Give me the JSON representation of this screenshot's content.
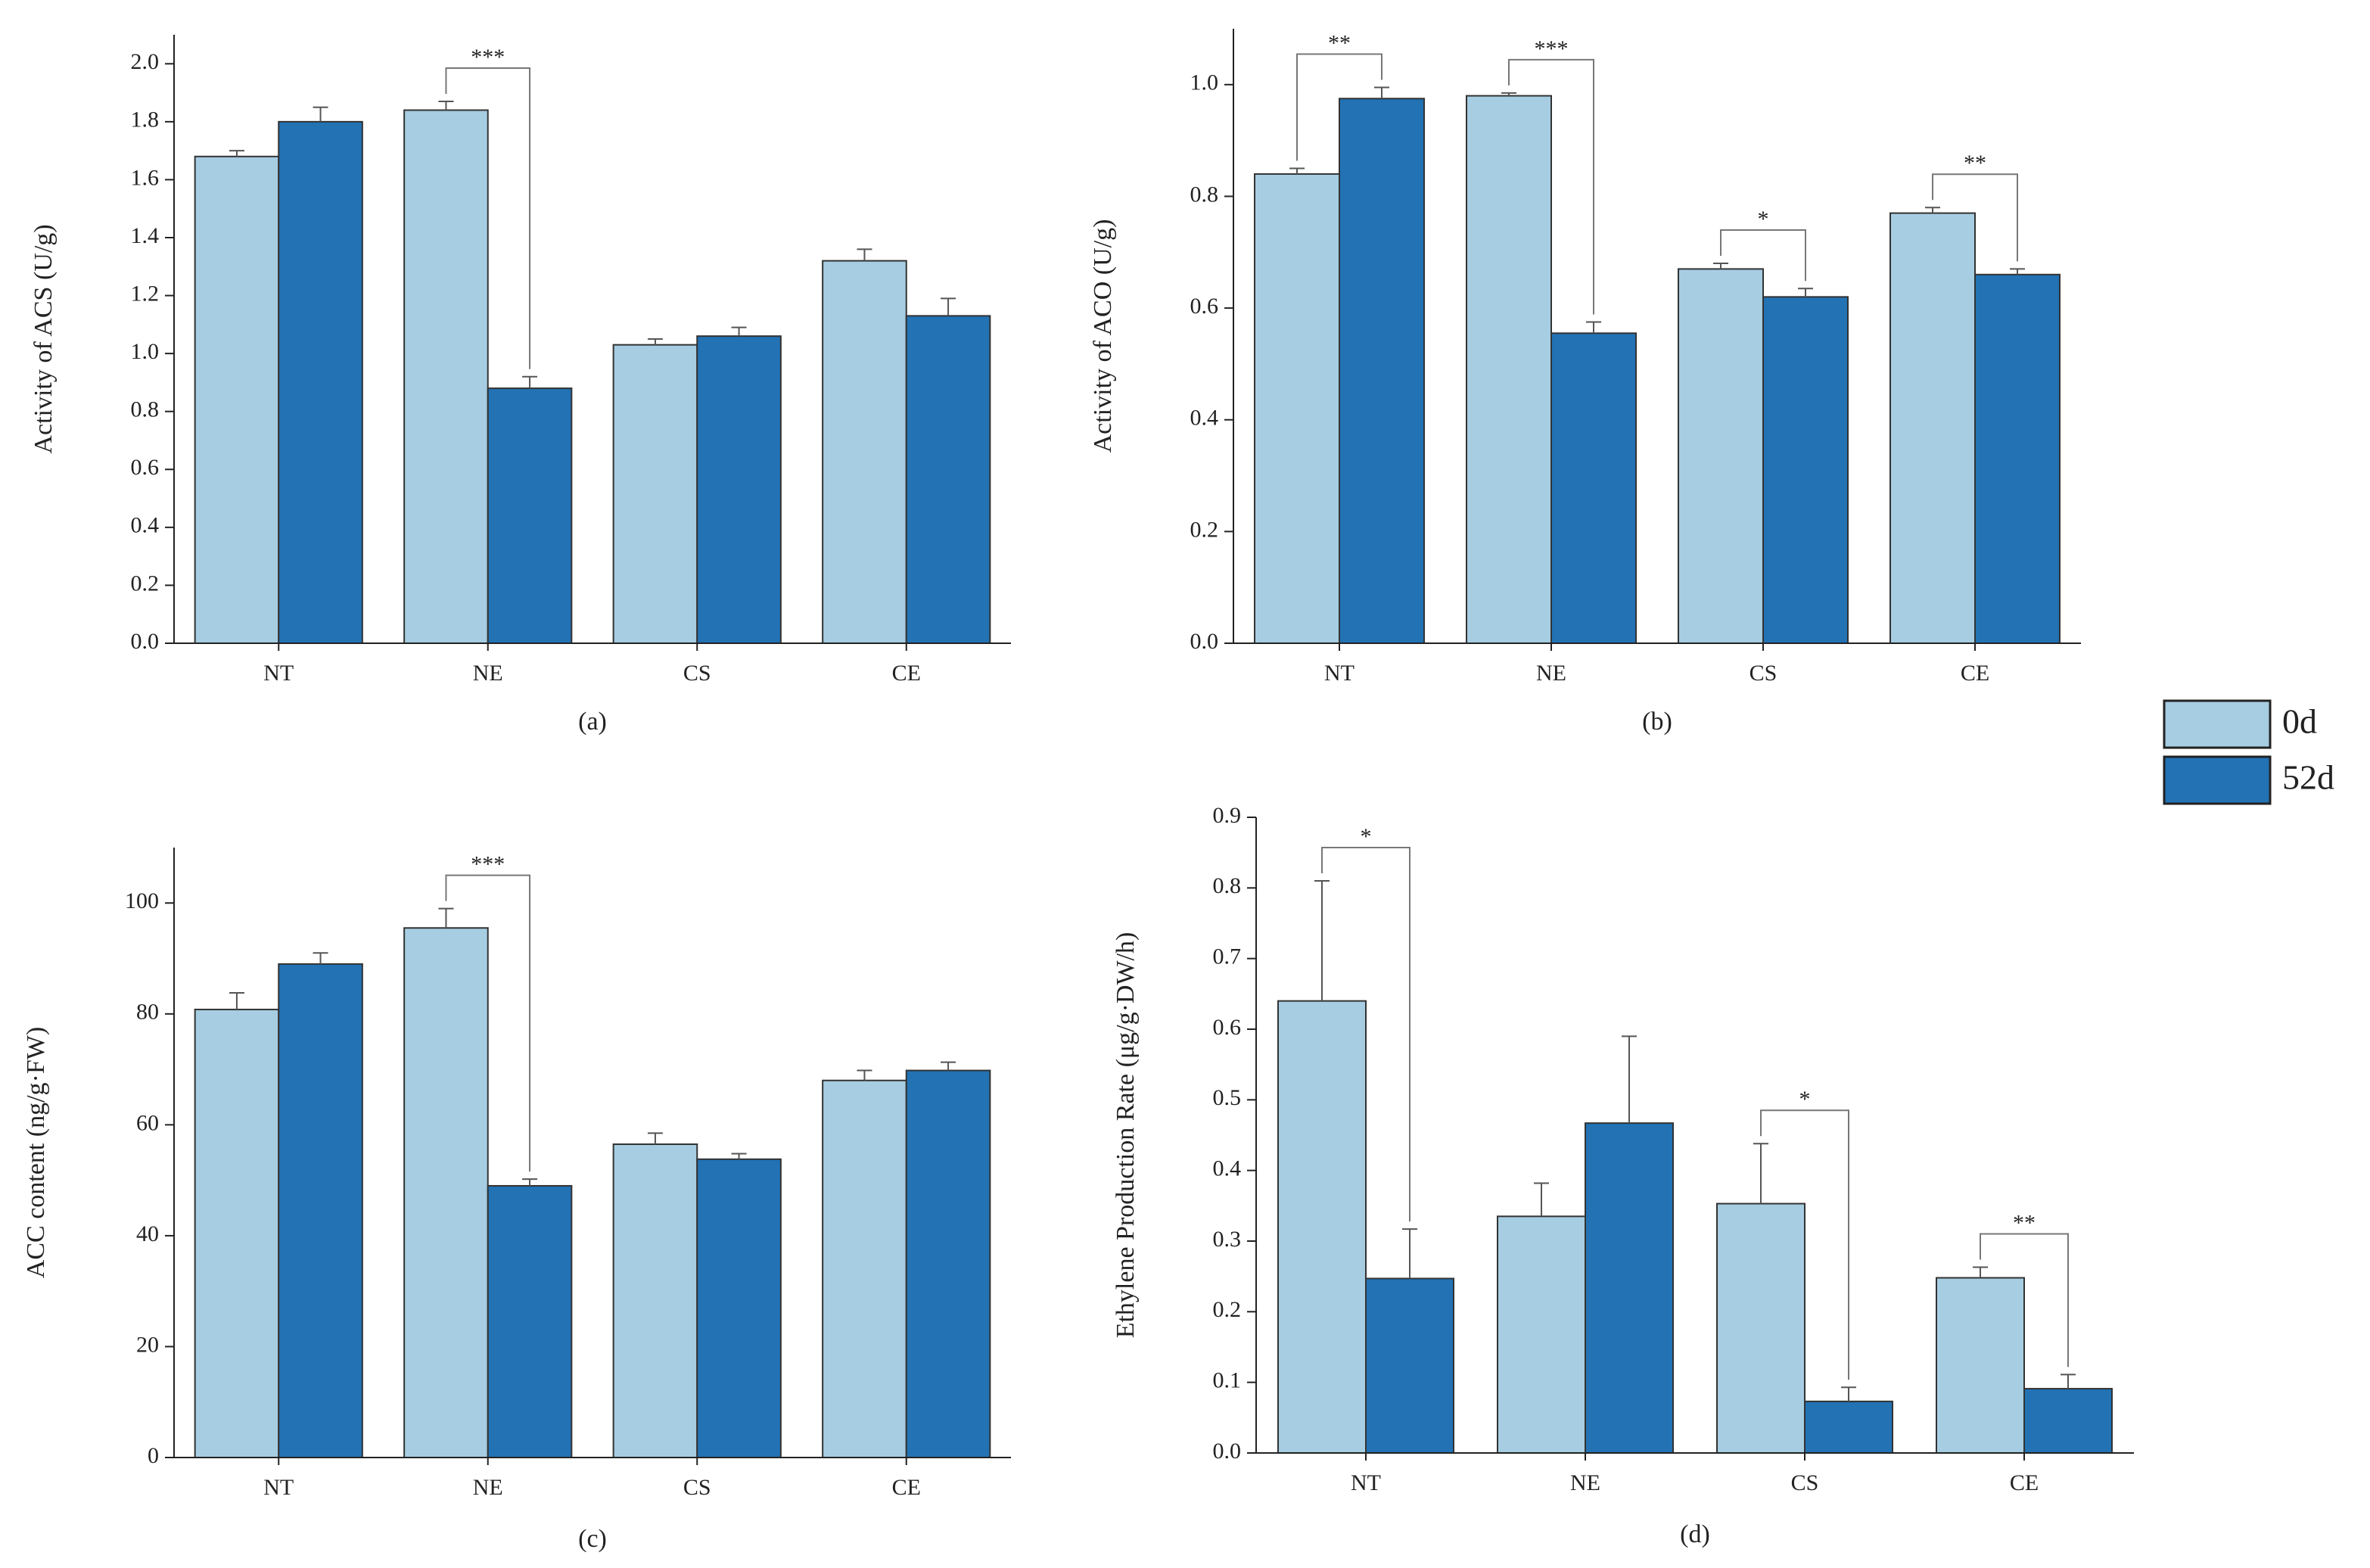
{
  "chart_data": [
    {
      "type": "bar",
      "caption": "(a)",
      "y_label": "Activity of ACS (U/g)",
      "categories": [
        "NT",
        "NE",
        "CS",
        "CE"
      ],
      "series": [
        {
          "name": "0d",
          "color": "#a6cde1",
          "values": [
            1.68,
            1.84,
            1.03,
            1.32
          ],
          "errors": [
            0.02,
            0.03,
            0.02,
            0.04
          ]
        },
        {
          "name": "52d",
          "color": "#2272b4",
          "values": [
            1.8,
            0.88,
            1.06,
            1.13
          ],
          "errors": [
            0.05,
            0.04,
            0.03,
            0.06
          ]
        }
      ],
      "ylim": [
        0,
        2.1
      ],
      "yticks": [
        {
          "value": 0,
          "label": "0.0"
        },
        0.2,
        0.4,
        0.6,
        0.8,
        {
          "value": 1,
          "label": "1.0"
        },
        1.2,
        1.4,
        1.6,
        1.8,
        {
          "value": 2,
          "label": "2.0"
        }
      ],
      "annotations": [
        {
          "category": "NE",
          "label": "***"
        }
      ]
    },
    {
      "type": "bar",
      "caption": "(b)",
      "y_label": "Activity of ACO (U/g)",
      "categories": [
        "NT",
        "NE",
        "CS",
        "CE"
      ],
      "series": [
        {
          "color": "#a6cde1",
          "values": [
            0.84,
            0.98,
            0.67,
            0.77
          ],
          "errors": [
            0.01,
            0.005,
            0.01,
            0.01
          ]
        },
        {
          "color": "#2272b4",
          "values": [
            0.975,
            0.555,
            0.62,
            0.66
          ],
          "errors": [
            0.02,
            0.02,
            0.015,
            0.01
          ]
        }
      ],
      "ylim": [
        0,
        1.1
      ],
      "yticks": [
        {
          "value": 0,
          "label": "0.0"
        },
        0.2,
        0.4,
        0.6,
        0.8,
        {
          "value": 1,
          "label": "1.0"
        }
      ],
      "annotations": [
        {
          "category": "NT",
          "label": "**"
        },
        {
          "category": "NE",
          "label": "***"
        },
        {
          "category": "CS",
          "label": "*"
        },
        {
          "category": "CE",
          "label": "**"
        }
      ]
    },
    {
      "type": "bar",
      "caption": "(c)",
      "y_label": "ACC content (ng/g·FW)",
      "categories": [
        "NT",
        "NE",
        "CS",
        "CE"
      ],
      "series": [
        {
          "color": "#a6cde1",
          "values": [
            80.8,
            95.5,
            56.5,
            68
          ],
          "errors": [
            3,
            3.5,
            2,
            1.8
          ]
        },
        {
          "color": "#2272b4",
          "values": [
            89,
            49,
            53.8,
            69.8
          ],
          "errors": [
            2,
            1.2,
            1,
            1.5
          ]
        }
      ],
      "ylim": [
        0,
        110
      ],
      "yticks": [
        0,
        20,
        40,
        60,
        80,
        100
      ],
      "annotations": [
        {
          "category": "NE",
          "label": "***"
        }
      ]
    },
    {
      "type": "bar",
      "caption": "(d)",
      "y_label": "Ethylene Production Rate (μg/g·DW/h)",
      "categories": [
        "NT",
        "NE",
        "CS",
        "CE"
      ],
      "series": [
        {
          "color": "#a6cde1",
          "values": [
            0.64,
            0.335,
            0.353,
            0.248
          ],
          "errors": [
            0.17,
            0.047,
            0.085,
            0.015
          ]
        },
        {
          "color": "#2272b4",
          "values": [
            0.247,
            0.467,
            0.073,
            0.091
          ],
          "errors": [
            0.07,
            0.123,
            0.02,
            0.02
          ]
        }
      ],
      "ylim": [
        0,
        0.9
      ],
      "yticks": [
        {
          "value": 0,
          "label": "0.0"
        },
        0.1,
        0.2,
        0.3,
        0.4,
        0.5,
        0.6,
        0.7,
        0.8,
        0.9
      ],
      "annotations": [
        {
          "category": "NT",
          "label": "*"
        },
        {
          "category": "CS",
          "label": "*"
        },
        {
          "category": "CE",
          "label": "**"
        }
      ]
    }
  ]
}
